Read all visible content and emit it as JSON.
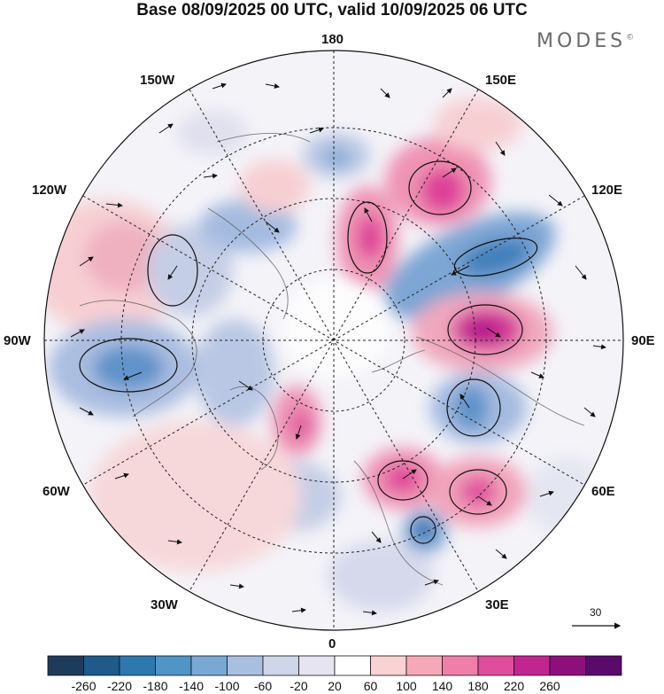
{
  "title": "Base 08/09/2025 00 UTC, valid 10/09/2025 06 UTC",
  "brand": {
    "name": "MODES",
    "mark": "©"
  },
  "longitude_labels": {
    "n180": "180",
    "e150": "150E",
    "e120": "120E",
    "e90": "90E",
    "e60": "60E",
    "e30": "30E",
    "n0": "0",
    "w30": "30W",
    "w60": "60W",
    "w90": "90W",
    "w120": "120W",
    "w150": "150W"
  },
  "reference_vector": {
    "value": "30"
  },
  "colorbar": {
    "labels": [
      "-260",
      "-220",
      "-180",
      "-140",
      "-100",
      "-60",
      "-20",
      "20",
      "60",
      "100",
      "140",
      "180",
      "220",
      "260"
    ],
    "colors": [
      "#1f3b5c",
      "#1e5a8a",
      "#2e78b0",
      "#4f95c6",
      "#7aa8d4",
      "#a9bfe0",
      "#cfd6ea",
      "#e6e4f1",
      "#ffffff",
      "#f9d2d3",
      "#f5a9b8",
      "#ef7fa8",
      "#e14d9d",
      "#c3258e",
      "#8e0f7c",
      "#5a0a6a"
    ]
  },
  "map": {
    "projection": "north-polar-stereographic",
    "anomaly_colors": {
      "blue_dark": "#3f7fbc",
      "blue_mid": "#7ea6d4",
      "blue_light": "#c4cee6",
      "lav": "#dcdcec",
      "pink_light": "#f7cfd3",
      "pink_mid": "#ef93b4",
      "pink_dark": "#de3f98",
      "magenta": "#b2168a"
    }
  }
}
